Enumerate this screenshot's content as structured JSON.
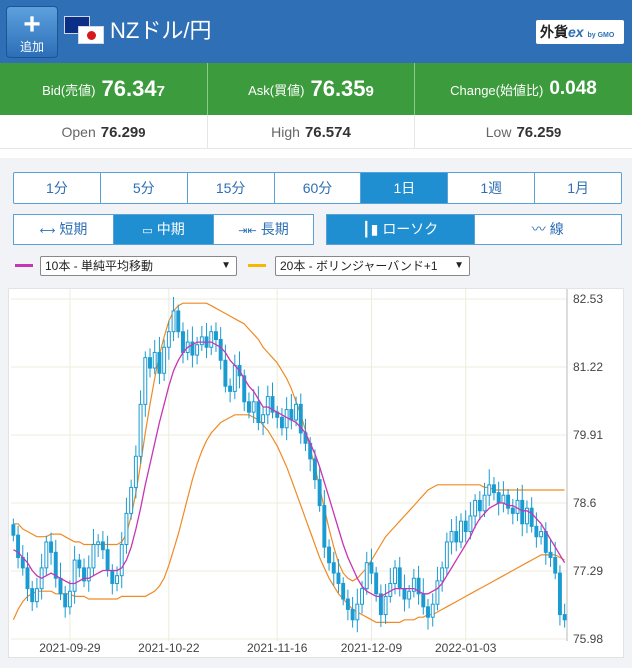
{
  "header": {
    "add_label": "追加",
    "add_icon": "plus-icon",
    "pair": "NZドル/円",
    "brand_main": "外貨",
    "brand_ex": "ex",
    "brand_sub": "by GMO",
    "flags": [
      "nz-flag-icon",
      "jp-flag-icon"
    ],
    "bg_color": "#2e6fb5"
  },
  "prices": {
    "bid_label": "Bid(売値)",
    "bid_main": "76.34",
    "bid_last": "7",
    "ask_label": "Ask(買値)",
    "ask_main": "76.35",
    "ask_last": "9",
    "change_label": "Change(始値比)",
    "change_value": "0.048",
    "bg_color": "#3c9b3c"
  },
  "ohl": {
    "open_label": "Open",
    "open_main": "76.29",
    "open_last": "9",
    "high_label": "High",
    "high_value": "76.574",
    "low_label": "Low",
    "low_main": "76.25",
    "low_last": "9"
  },
  "timeframes": [
    "1分",
    "5分",
    "15分",
    "60分",
    "1日",
    "1週",
    "1月"
  ],
  "active_timeframe": "1日",
  "periods": [
    {
      "label": "短期",
      "icon": "arrows-out-icon"
    },
    {
      "label": "中期",
      "icon": "window-icon"
    },
    {
      "label": "長期",
      "icon": "arrows-in-icon"
    }
  ],
  "active_period": "中期",
  "styles": [
    {
      "label": "ローソク",
      "icon": "candlestick-icon"
    },
    {
      "label": "線",
      "icon": "line-chart-icon"
    }
  ],
  "active_style": "ローソク",
  "indicators": {
    "ma_value": "10本 - 単純平均移動",
    "ma_color": "#c635b4",
    "bb_value": "20本 - ボリンジャーバンド+1",
    "bb_color": "#f5b800"
  },
  "chart_data": {
    "type": "candlestick",
    "y_ticks": [
      "82.53",
      "81.22",
      "79.91",
      "78.6",
      "77.29",
      "75.98"
    ],
    "ylim": [
      75.98,
      82.53
    ],
    "x_ticks": [
      "2021-09-29",
      "2021-10-22",
      "2021-11-16",
      "2021-12-09",
      "2022-01-03"
    ],
    "candle_color": "#1a9bd1",
    "ma_color": "#c635b4",
    "band_color": "#f08a24",
    "grid": true,
    "close": [
      77.98,
      77.55,
      77.35,
      76.95,
      76.7,
      76.95,
      77.35,
      77.85,
      77.65,
      77.15,
      76.85,
      76.6,
      76.9,
      77.5,
      77.35,
      77.1,
      77.35,
      77.8,
      77.85,
      77.7,
      77.3,
      77.05,
      77.2,
      77.8,
      78.4,
      78.9,
      79.5,
      80.5,
      81.4,
      81.2,
      81.5,
      81.1,
      81.6,
      81.9,
      82.3,
      81.9,
      81.5,
      81.7,
      81.45,
      81.65,
      81.8,
      81.6,
      81.9,
      81.75,
      81.35,
      80.85,
      80.75,
      81.25,
      81.05,
      80.55,
      80.35,
      80.55,
      80.15,
      80.3,
      80.65,
      80.35,
      80.25,
      80.05,
      80.4,
      80.2,
      80.5,
      79.95,
      79.75,
      79.45,
      79.05,
      78.55,
      77.75,
      77.45,
      77.25,
      77.05,
      76.75,
      76.55,
      76.35,
      76.65,
      76.95,
      77.45,
      77.25,
      76.85,
      76.45,
      76.8,
      77.05,
      77.35,
      76.95,
      76.75,
      76.9,
      77.15,
      76.85,
      76.6,
      76.4,
      76.65,
      77.1,
      77.35,
      77.85,
      78.05,
      77.85,
      78.25,
      78.05,
      78.35,
      78.65,
      78.45,
      78.75,
      78.95,
      78.8,
      78.6,
      78.75,
      78.5,
      78.4,
      78.65,
      78.2,
      78.5,
      78.15,
      77.95,
      78.05,
      77.65,
      77.55,
      77.25,
      76.45,
      76.35
    ],
    "ma": [
      77.7,
      77.65,
      77.55,
      77.45,
      77.3,
      77.2,
      77.15,
      77.2,
      77.25,
      77.2,
      77.15,
      77.1,
      77.05,
      77.05,
      77.1,
      77.15,
      77.15,
      77.2,
      77.25,
      77.3,
      77.3,
      77.3,
      77.3,
      77.35,
      77.5,
      77.75,
      78.1,
      78.5,
      78.95,
      79.35,
      79.75,
      80.15,
      80.5,
      80.85,
      81.15,
      81.35,
      81.5,
      81.6,
      81.65,
      81.7,
      81.7,
      81.7,
      81.7,
      81.65,
      81.6,
      81.5,
      81.35,
      81.25,
      81.15,
      81.0,
      80.85,
      80.75,
      80.6,
      80.45,
      80.45,
      80.4,
      80.35,
      80.3,
      80.25,
      80.2,
      80.15,
      80.05,
      79.95,
      79.75,
      79.55,
      79.3,
      79.0,
      78.7,
      78.4,
      78.1,
      77.8,
      77.55,
      77.35,
      77.15,
      77.0,
      76.9,
      76.85,
      76.8,
      76.8,
      76.85,
      76.9,
      76.95,
      76.95,
      76.95,
      76.95,
      76.95,
      76.9,
      76.85,
      76.85,
      76.9,
      76.95,
      77.05,
      77.2,
      77.35,
      77.5,
      77.65,
      77.8,
      77.95,
      78.15,
      78.3,
      78.4,
      78.5,
      78.55,
      78.6,
      78.6,
      78.55,
      78.55,
      78.5,
      78.45,
      78.45,
      78.4,
      78.3,
      78.2,
      78.05,
      77.9,
      77.75,
      77.6,
      77.45
    ],
    "upper": [
      78.2,
      78.2,
      78.1,
      78.05,
      78.0,
      77.95,
      77.95,
      77.95,
      78.0,
      78.0,
      78.0,
      77.95,
      77.9,
      77.85,
      77.85,
      77.8,
      77.8,
      77.8,
      77.8,
      77.8,
      77.8,
      77.8,
      77.8,
      77.85,
      78.0,
      78.35,
      78.8,
      79.35,
      79.95,
      80.5,
      81.0,
      81.45,
      81.8,
      82.1,
      82.3,
      82.4,
      82.45,
      82.45,
      82.45,
      82.45,
      82.45,
      82.45,
      82.4,
      82.35,
      82.3,
      82.25,
      82.2,
      82.15,
      82.1,
      82.05,
      81.95,
      81.85,
      81.75,
      81.6,
      81.5,
      81.4,
      81.3,
      81.15,
      81.0,
      80.8,
      80.55,
      80.3,
      80.0,
      79.65,
      79.3,
      78.9,
      78.5,
      78.1,
      77.75,
      77.45,
      77.25,
      77.15,
      77.1,
      77.15,
      77.25,
      77.35,
      77.5,
      77.65,
      77.8,
      77.95,
      78.05,
      78.15,
      78.25,
      78.35,
      78.45,
      78.55,
      78.65,
      78.75,
      78.85,
      78.9,
      78.95,
      78.95,
      78.95,
      78.95,
      78.95,
      78.95,
      78.95,
      78.95,
      78.95,
      78.95,
      78.9,
      78.9,
      78.85,
      78.85,
      78.85,
      78.85,
      78.85,
      78.85,
      78.85,
      78.85,
      78.85,
      78.85,
      78.85,
      78.85,
      78.85,
      78.85,
      78.85,
      78.85
    ],
    "lower": [
      76.35,
      76.55,
      76.7,
      76.8,
      76.85,
      76.9,
      76.9,
      76.9,
      76.9,
      76.85,
      76.85,
      76.85,
      76.85,
      76.8,
      76.8,
      76.8,
      76.75,
      76.75,
      76.75,
      76.75,
      76.75,
      76.75,
      76.75,
      76.8,
      76.8,
      76.8,
      76.8,
      76.8,
      76.8,
      76.85,
      76.9,
      77.0,
      77.15,
      77.4,
      77.7,
      78.0,
      78.35,
      78.7,
      79.05,
      79.35,
      79.6,
      79.8,
      79.95,
      80.05,
      80.15,
      80.2,
      80.25,
      80.3,
      80.3,
      80.3,
      80.3,
      80.25,
      80.2,
      80.1,
      80.0,
      79.85,
      79.7,
      79.5,
      79.3,
      79.05,
      78.8,
      78.55,
      78.3,
      78.05,
      77.8,
      77.55,
      77.35,
      77.15,
      77.0,
      76.85,
      76.75,
      76.65,
      76.55,
      76.5,
      76.45,
      76.4,
      76.35,
      76.3,
      76.3,
      76.3,
      76.3,
      76.3,
      76.3,
      76.35,
      76.35,
      76.35,
      76.4,
      76.4,
      76.45,
      76.45,
      76.5,
      76.55,
      76.6,
      76.65,
      76.7,
      76.75,
      76.8,
      76.85,
      76.9,
      76.95,
      77.0,
      77.05,
      77.1,
      77.15,
      77.2,
      77.25,
      77.3,
      77.35,
      77.4,
      77.45,
      77.5,
      77.55,
      77.6,
      77.6,
      77.6,
      77.6,
      77.55,
      77.5
    ]
  }
}
